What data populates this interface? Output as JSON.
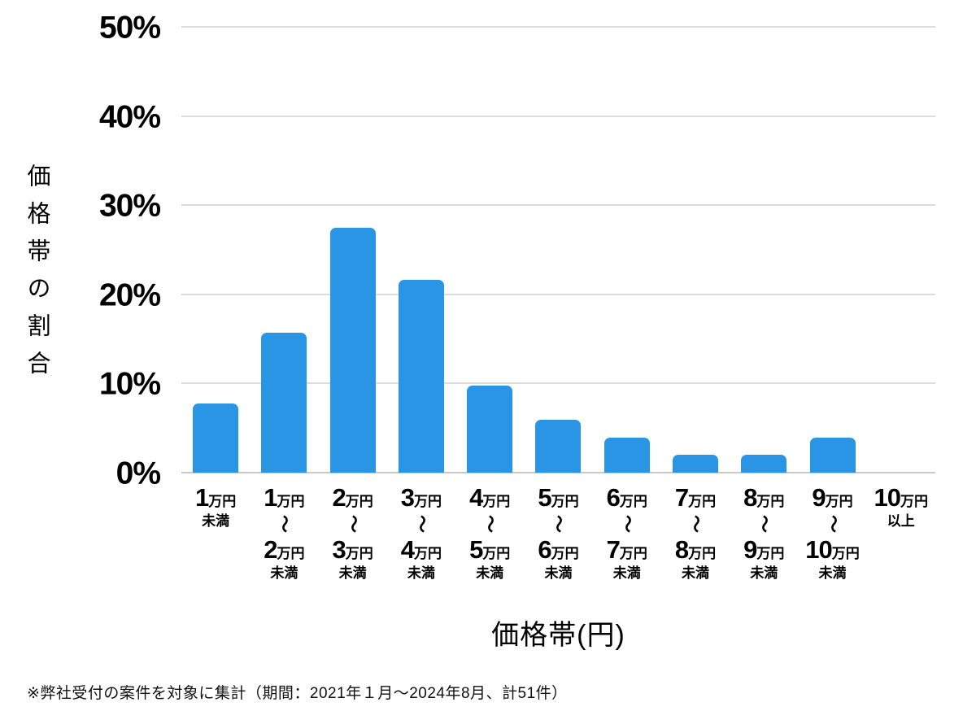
{
  "chart_data": {
    "type": "bar",
    "title": "",
    "xlabel": "価格帯(円)",
    "ylabel": "価格帯の割合",
    "ylim": [
      0,
      50
    ],
    "y_tick_values": [
      0,
      10,
      20,
      30,
      40,
      50
    ],
    "y_tick_suffix": "%",
    "grid": "horizontal",
    "legend": "none",
    "bar_color": "#2B95E5",
    "gridline_color": "#dcdcdc",
    "categories": [
      {
        "label": "1万円未満",
        "num1": "1",
        "unit1": "万円",
        "tilde": "",
        "num2": "",
        "unit2": "",
        "note": "未満"
      },
      {
        "label": "1万円〜2万円未満",
        "num1": "1",
        "unit1": "万円",
        "tilde": "〜",
        "num2": "2",
        "unit2": "万円",
        "note": "未満"
      },
      {
        "label": "2万円〜3万円未満",
        "num1": "2",
        "unit1": "万円",
        "tilde": "〜",
        "num2": "3",
        "unit2": "万円",
        "note": "未満"
      },
      {
        "label": "3万円〜4万円未満",
        "num1": "3",
        "unit1": "万円",
        "tilde": "〜",
        "num2": "4",
        "unit2": "万円",
        "note": "未満"
      },
      {
        "label": "4万円〜5万円未満",
        "num1": "4",
        "unit1": "万円",
        "tilde": "〜",
        "num2": "5",
        "unit2": "万円",
        "note": "未満"
      },
      {
        "label": "5万円〜6万円未満",
        "num1": "5",
        "unit1": "万円",
        "tilde": "〜",
        "num2": "6",
        "unit2": "万円",
        "note": "未満"
      },
      {
        "label": "6万円〜7万円未満",
        "num1": "6",
        "unit1": "万円",
        "tilde": "〜",
        "num2": "7",
        "unit2": "万円",
        "note": "未満"
      },
      {
        "label": "7万円〜8万円未満",
        "num1": "7",
        "unit1": "万円",
        "tilde": "〜",
        "num2": "8",
        "unit2": "万円",
        "note": "未満"
      },
      {
        "label": "8万円〜9万円未満",
        "num1": "8",
        "unit1": "万円",
        "tilde": "〜",
        "num2": "9",
        "unit2": "万円",
        "note": "未満"
      },
      {
        "label": "9万円〜10万円未満",
        "num1": "9",
        "unit1": "万円",
        "tilde": "〜",
        "num2": "10",
        "unit2": "万円",
        "note": "未満"
      },
      {
        "label": "10万円以上",
        "num1": "10",
        "unit1": "万円",
        "tilde": "",
        "num2": "",
        "unit2": "",
        "note": "以上"
      }
    ],
    "values": [
      7.8,
      15.7,
      27.5,
      21.6,
      9.8,
      5.9,
      3.9,
      2.0,
      2.0,
      3.9,
      0
    ]
  },
  "footer": {
    "note": "※弊社受付の案件を対象に集計（期間：2021年１月～2024年8月、計51件）"
  }
}
